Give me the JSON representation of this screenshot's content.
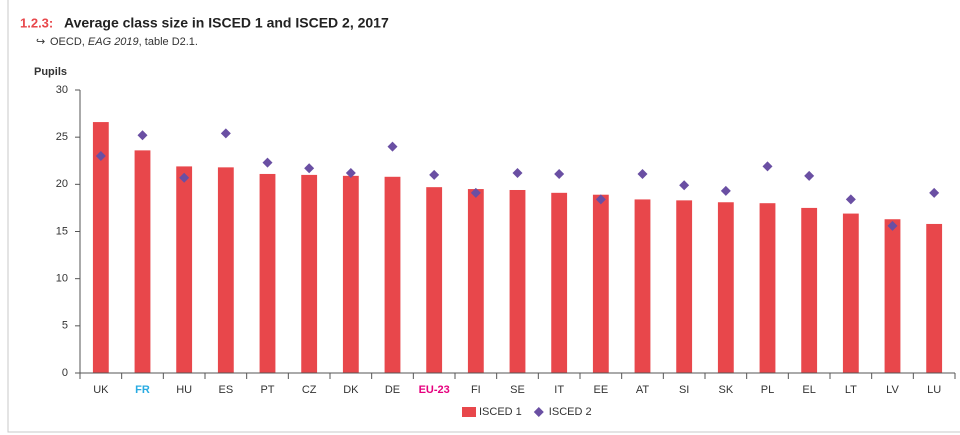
{
  "chart_data": {
    "type": "bar",
    "figure_number": "1.2.3:",
    "title": "Average class size in ISCED 1 and ISCED 2, 2017",
    "source_prefix": "OECD, ",
    "source_italic": "EAG 2019",
    "source_suffix": ", table D2.1.",
    "y_label": "Pupils",
    "categories": [
      "UK",
      "FR",
      "HU",
      "ES",
      "PT",
      "CZ",
      "DK",
      "DE",
      "EU-23",
      "FI",
      "SE",
      "IT",
      "EE",
      "AT",
      "SI",
      "SK",
      "PL",
      "EL",
      "LT",
      "LV",
      "LU"
    ],
    "category_colors": [
      "#333333",
      "#29abe2",
      "#333333",
      "#333333",
      "#333333",
      "#333333",
      "#333333",
      "#333333",
      "#e6007e",
      "#333333",
      "#333333",
      "#333333",
      "#333333",
      "#333333",
      "#333333",
      "#333333",
      "#333333",
      "#333333",
      "#333333",
      "#333333",
      "#333333"
    ],
    "series": [
      {
        "name": "ISCED 1",
        "type": "bar",
        "color": "#e8474b",
        "values": [
          26.6,
          23.6,
          21.9,
          21.8,
          21.1,
          21.0,
          20.9,
          20.8,
          19.7,
          19.5,
          19.4,
          19.1,
          18.9,
          18.4,
          18.3,
          18.1,
          18.0,
          17.5,
          16.9,
          16.3,
          15.8
        ]
      },
      {
        "name": "ISCED 2",
        "type": "diamond",
        "color": "#6a4fa3",
        "values": [
          23.0,
          25.2,
          20.7,
          25.4,
          22.3,
          21.7,
          21.2,
          24.0,
          21.0,
          19.1,
          21.2,
          21.1,
          18.4,
          21.1,
          19.9,
          19.3,
          21.9,
          20.9,
          18.4,
          15.6,
          19.1
        ]
      }
    ],
    "ylim": [
      0,
      30
    ],
    "yticks": [
      0,
      5,
      10,
      15,
      20,
      25,
      30
    ],
    "grid": false
  }
}
